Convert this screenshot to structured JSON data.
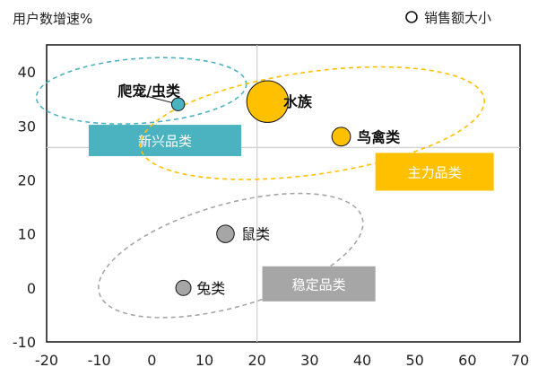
{
  "chart_data": {
    "type": "scatter",
    "title": "",
    "ylabel": "用户数增速%",
    "xlabel": "",
    "size_legend": "销售额大小",
    "xlim": [
      -20,
      70
    ],
    "ylim": [
      -10,
      45
    ],
    "xticks": [
      -20,
      -10,
      0,
      10,
      20,
      30,
      40,
      50,
      60,
      70
    ],
    "yticks": [
      -10,
      0,
      10,
      20,
      30,
      40
    ],
    "quadrant_lines": {
      "x": 20,
      "y": 26
    },
    "points": [
      {
        "label": "水族",
        "x": 22,
        "y": 34.5,
        "size": 6,
        "color": "#FFC000",
        "emphasis": true
      },
      {
        "label": "鸟禽类",
        "x": 36,
        "y": 28,
        "size": 2,
        "color": "#FFC000",
        "emphasis": true
      },
      {
        "label": "爬宠/虫类",
        "x": 5,
        "y": 34,
        "size": 1,
        "color": "#4BB3C0",
        "emphasis": true
      },
      {
        "label": "鼠类",
        "x": 14,
        "y": 10,
        "size": 1.8,
        "color": "#A6A6A6",
        "emphasis": false
      },
      {
        "label": "兔类",
        "x": 6,
        "y": 0,
        "size": 1.4,
        "color": "#A6A6A6",
        "emphasis": false
      }
    ],
    "groups": [
      {
        "label": "新兴品类",
        "color": "#4BB3C0"
      },
      {
        "label": "主力品类",
        "color": "#FFC000"
      },
      {
        "label": "稳定品类",
        "color": "#A6A6A6"
      }
    ]
  }
}
